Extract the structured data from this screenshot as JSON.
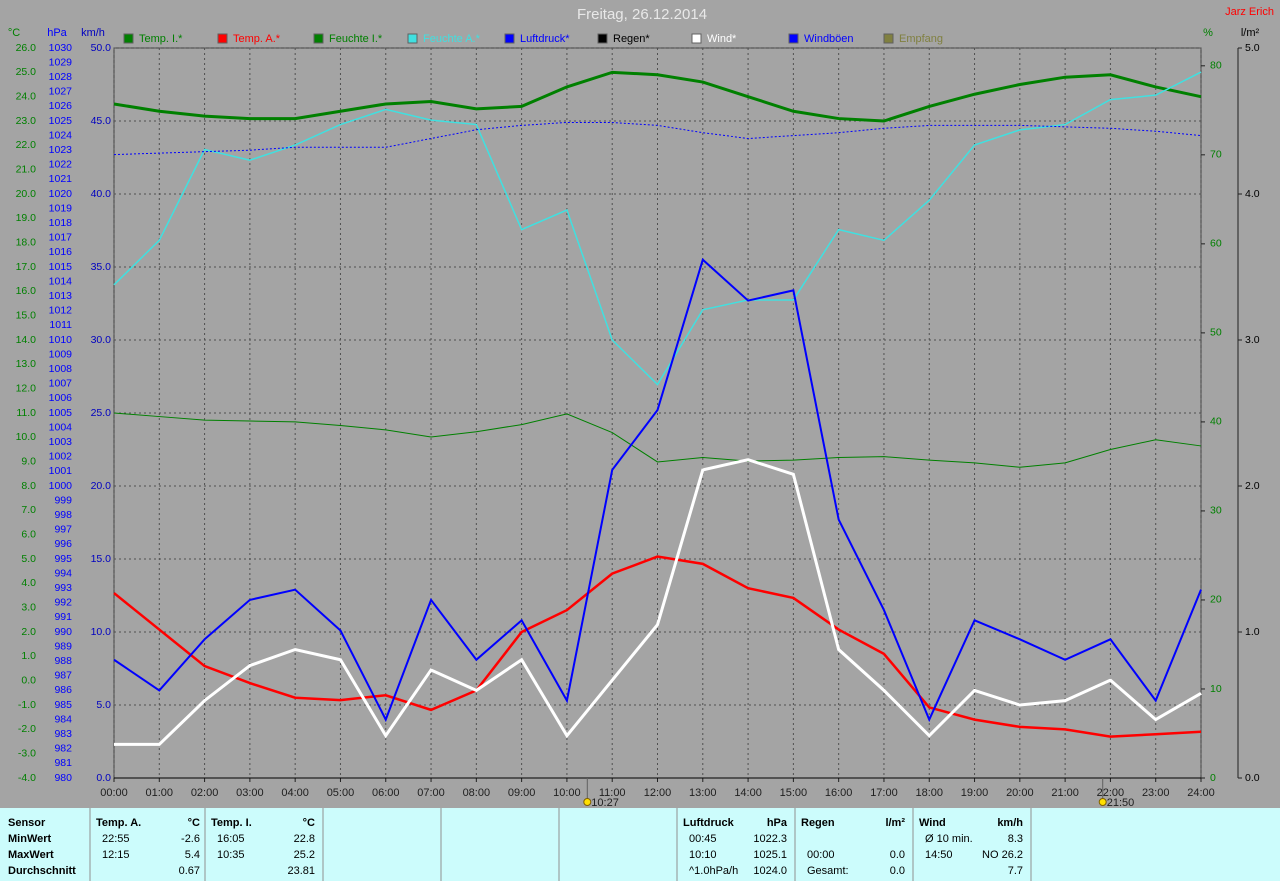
{
  "chart_data": {
    "type": "line",
    "title": "Freitag, 26.12.2014",
    "corner_label": "Jarz Erich",
    "grid": true,
    "x": [
      0,
      1,
      2,
      3,
      4,
      5,
      6,
      7,
      8,
      9,
      10,
      11,
      12,
      13,
      14,
      15,
      16,
      17,
      18,
      19,
      20,
      21,
      22,
      23,
      24
    ],
    "xlim": [
      0,
      24
    ],
    "xticks": [
      {
        "value": 0,
        "label": "00:00"
      },
      {
        "value": 1,
        "label": "01:00"
      },
      {
        "value": 2,
        "label": "02:00"
      },
      {
        "value": 3,
        "label": "03:00"
      },
      {
        "value": 4,
        "label": "04:00"
      },
      {
        "value": 5,
        "label": "05:00"
      },
      {
        "value": 6,
        "label": "06:00"
      },
      {
        "value": 7,
        "label": "07:00"
      },
      {
        "value": 8,
        "label": "08:00"
      },
      {
        "value": 9,
        "label": "09:00"
      },
      {
        "value": 10,
        "label": "10:00"
      },
      {
        "value": 11,
        "label": "11:00"
      },
      {
        "value": 12,
        "label": "12:00"
      },
      {
        "value": 13,
        "label": "13:00"
      },
      {
        "value": 14,
        "label": "14:00"
      },
      {
        "value": 15,
        "label": "15:00"
      },
      {
        "value": 16,
        "label": "16:00"
      },
      {
        "value": 17,
        "label": "17:00"
      },
      {
        "value": 18,
        "label": "18:00"
      },
      {
        "value": 19,
        "label": "19:00"
      },
      {
        "value": 20,
        "label": "20:00"
      },
      {
        "value": 21,
        "label": "21:00"
      },
      {
        "value": 22,
        "label": "22:00"
      },
      {
        "value": 23,
        "label": "23:00"
      },
      {
        "value": 24,
        "label": "24:00"
      }
    ],
    "annotations": [
      {
        "x": 10.45,
        "label": "10:27"
      },
      {
        "x": 21.83,
        "label": "21:50"
      }
    ],
    "axes": [
      {
        "unit": "°C",
        "side": "left",
        "color": "#008000",
        "lim": [
          -4,
          26
        ],
        "ticks": [
          {
            "value": -4,
            "label": "-4.0"
          },
          {
            "value": -3,
            "label": "-3.0"
          },
          {
            "value": -2,
            "label": "-2.0"
          },
          {
            "value": -1,
            "label": "-1.0"
          },
          {
            "value": 0,
            "label": "0.0"
          },
          {
            "value": 1,
            "label": "1.0"
          },
          {
            "value": 2,
            "label": "2.0"
          },
          {
            "value": 3,
            "label": "3.0"
          },
          {
            "value": 4,
            "label": "4.0"
          },
          {
            "value": 5,
            "label": "5.0"
          },
          {
            "value": 6,
            "label": "6.0"
          },
          {
            "value": 7,
            "label": "7.0"
          },
          {
            "value": 8,
            "label": "8.0"
          },
          {
            "value": 9,
            "label": "9.0"
          },
          {
            "value": 10,
            "label": "10.0"
          },
          {
            "value": 11,
            "label": "11.0"
          },
          {
            "value": 12,
            "label": "12.0"
          },
          {
            "value": 13,
            "label": "13.0"
          },
          {
            "value": 14,
            "label": "14.0"
          },
          {
            "value": 15,
            "label": "15.0"
          },
          {
            "value": 16,
            "label": "16.0"
          },
          {
            "value": 17,
            "label": "17.0"
          },
          {
            "value": 18,
            "label": "18.0"
          },
          {
            "value": 19,
            "label": "19.0"
          },
          {
            "value": 20,
            "label": "20.0"
          },
          {
            "value": 21,
            "label": "21.0"
          },
          {
            "value": 22,
            "label": "22.0"
          },
          {
            "value": 23,
            "label": "23.0"
          },
          {
            "value": 24,
            "label": "24.0"
          },
          {
            "value": 25,
            "label": "25.0"
          },
          {
            "value": 26,
            "label": "26.0"
          }
        ]
      },
      {
        "unit": "hPa",
        "side": "left",
        "color": "#0000ff",
        "lim": [
          980,
          1030
        ],
        "ticks": [
          980,
          981,
          982,
          983,
          984,
          985,
          986,
          987,
          988,
          989,
          990,
          991,
          992,
          993,
          994,
          995,
          996,
          997,
          998,
          999,
          1000,
          1001,
          1002,
          1003,
          1004,
          1005,
          1006,
          1007,
          1008,
          1009,
          1010,
          1011,
          1012,
          1013,
          1014,
          1015,
          1016,
          1017,
          1018,
          1019,
          1020,
          1021,
          1022,
          1023,
          1024,
          1025,
          1026,
          1027,
          1028,
          1029,
          1030
        ]
      },
      {
        "unit": "km/h",
        "side": "left",
        "color": "#0000c0",
        "lim": [
          0,
          50
        ],
        "ticks": [
          {
            "value": 0,
            "label": "0.0"
          },
          {
            "value": 5,
            "label": "5.0"
          },
          {
            "value": 10,
            "label": "10.0"
          },
          {
            "value": 15,
            "label": "15.0"
          },
          {
            "value": 20,
            "label": "20.0"
          },
          {
            "value": 25,
            "label": "25.0"
          },
          {
            "value": 30,
            "label": "30.0"
          },
          {
            "value": 35,
            "label": "35.0"
          },
          {
            "value": 40,
            "label": "40.0"
          },
          {
            "value": 45,
            "label": "45.0"
          },
          {
            "value": 50,
            "label": "50.0"
          }
        ]
      },
      {
        "unit": "%",
        "side": "right",
        "color": "#008000",
        "lim": [
          0,
          82
        ],
        "ticks": [
          0,
          10,
          20,
          30,
          40,
          50,
          60,
          70,
          80
        ]
      },
      {
        "unit": "l/m²",
        "side": "right",
        "color": "#000000",
        "lim": [
          0,
          5
        ],
        "ticks": [
          {
            "value": 0,
            "label": "0.0"
          },
          {
            "value": 1,
            "label": "1.0"
          },
          {
            "value": 2,
            "label": "2.0"
          },
          {
            "value": 3,
            "label": "3.0"
          },
          {
            "value": 4,
            "label": "4.0"
          },
          {
            "value": 5,
            "label": "5.0"
          }
        ]
      }
    ],
    "series": [
      {
        "name": "Temp. I.*",
        "color": "#008000",
        "axis": "°C",
        "width": 3,
        "values": [
          23.7,
          23.4,
          23.2,
          23.1,
          23.1,
          23.4,
          23.7,
          23.8,
          23.5,
          23.6,
          24.4,
          25.0,
          24.9,
          24.6,
          24.0,
          23.4,
          23.1,
          23.0,
          23.6,
          24.1,
          24.5,
          24.8,
          24.9,
          24.4,
          24.0
        ]
      },
      {
        "name": "Temp. A.*",
        "color": "#ff0000",
        "axis": "°C",
        "width": 2.5,
        "values": [
          3.6,
          2.1,
          0.6,
          -0.1,
          -0.7,
          -0.8,
          -0.6,
          -1.2,
          -0.4,
          2.0,
          2.9,
          4.4,
          5.1,
          4.8,
          3.8,
          3.4,
          2.1,
          1.1,
          -1.1,
          -1.6,
          -1.9,
          -2.0,
          -2.3,
          -2.2,
          -2.1
        ]
      },
      {
        "name": "Feuchte I.*",
        "color": "#008000",
        "axis": "%",
        "width": 1,
        "values": [
          41.0,
          40.6,
          40.2,
          40.1,
          40.0,
          39.6,
          39.1,
          38.3,
          38.9,
          39.7,
          40.9,
          38.8,
          35.5,
          36.0,
          35.6,
          35.7,
          36.0,
          36.1,
          35.7,
          35.4,
          34.9,
          35.4,
          36.9,
          38.0,
          37.3
        ]
      },
      {
        "name": "Feuchte A.*",
        "color": "#40e0e0",
        "axis": "%",
        "width": 1.5,
        "values": [
          55.4,
          60.4,
          70.6,
          69.4,
          71.1,
          73.4,
          75.1,
          73.9,
          73.4,
          61.6,
          63.8,
          49.2,
          44.2,
          52.6,
          53.7,
          53.7,
          61.6,
          60.4,
          64.9,
          71.1,
          72.8,
          73.4,
          76.2,
          76.7,
          79.3
        ]
      },
      {
        "name": "Luftdruck*",
        "color": "#0000ff",
        "axis": "hPa",
        "width": 1,
        "dash": true,
        "values": [
          1022.7,
          1022.8,
          1022.9,
          1023.0,
          1023.2,
          1023.2,
          1023.2,
          1023.8,
          1024.4,
          1024.7,
          1024.9,
          1024.9,
          1024.7,
          1024.2,
          1023.8,
          1024.0,
          1024.2,
          1024.5,
          1024.7,
          1024.7,
          1024.7,
          1024.6,
          1024.5,
          1024.3,
          1024.0
        ]
      },
      {
        "name": "Regen*",
        "color": "#000000",
        "axis": "l/m²",
        "width": 1,
        "values": [
          0,
          0,
          0,
          0,
          0,
          0,
          0,
          0,
          0,
          0,
          0,
          0,
          0,
          0,
          0,
          0,
          0,
          0,
          0,
          0,
          0,
          0,
          0,
          0,
          0
        ]
      },
      {
        "name": "Wind*",
        "color": "#ffffff",
        "axis": "km/h",
        "width": 3,
        "values": [
          2.3,
          2.3,
          5.3,
          7.7,
          8.8,
          8.1,
          2.9,
          7.4,
          6.0,
          8.1,
          2.9,
          6.7,
          10.5,
          21.1,
          21.8,
          20.8,
          8.8,
          6.0,
          2.9,
          6.0,
          5.0,
          5.3,
          6.7,
          4.0,
          5.8
        ]
      },
      {
        "name": "Windböen",
        "color": "#0000ff",
        "axis": "km/h",
        "width": 2,
        "values": [
          8.1,
          6.0,
          9.5,
          12.2,
          12.9,
          10.1,
          4.0,
          12.2,
          8.1,
          10.8,
          5.3,
          21.1,
          25.2,
          35.5,
          32.7,
          33.4,
          17.7,
          11.5,
          4.0,
          10.8,
          9.5,
          8.1,
          9.5,
          5.3,
          12.9
        ]
      },
      {
        "name": "Empfang",
        "color": "#808040",
        "axis": "%"
      }
    ]
  },
  "stats": {
    "sensor": {
      "header": "Sensor",
      "rows": [
        "MinWert",
        "MaxWert",
        "Durchschnitt"
      ]
    },
    "groups": [
      {
        "header": "Temp. A.",
        "unit": "°C",
        "rows": [
          {
            "time": "22:55",
            "value": "-2.6"
          },
          {
            "time": "12:15",
            "value": "5.4"
          },
          {
            "value": "0.67"
          }
        ]
      },
      {
        "header": "Temp. I.",
        "unit": "°C",
        "rows": [
          {
            "time": "16:05",
            "value": "22.8"
          },
          {
            "time": "10:35",
            "value": "25.2"
          },
          {
            "value": "23.81"
          }
        ]
      },
      {
        "header": "Luftdruck",
        "unit": "hPa",
        "rows": [
          {
            "time": "00:45",
            "value": "1022.3"
          },
          {
            "time": "10:10",
            "value": "1025.1"
          },
          {
            "time": "^1.0hPa/h",
            "value": "1024.0"
          }
        ]
      },
      {
        "header": "Regen",
        "unit": "l/m²",
        "rows": [
          null,
          {
            "time": "00:00",
            "value": "0.0"
          },
          {
            "time": "Gesamt:",
            "value": "0.0"
          }
        ]
      },
      {
        "header": "Wind",
        "unit": "km/h",
        "rows": [
          {
            "time": "Ø 10 min.",
            "value": "8.3"
          },
          {
            "time": "14:50",
            "value": "NO 26.2"
          },
          {
            "value": "7.7"
          }
        ]
      }
    ]
  }
}
